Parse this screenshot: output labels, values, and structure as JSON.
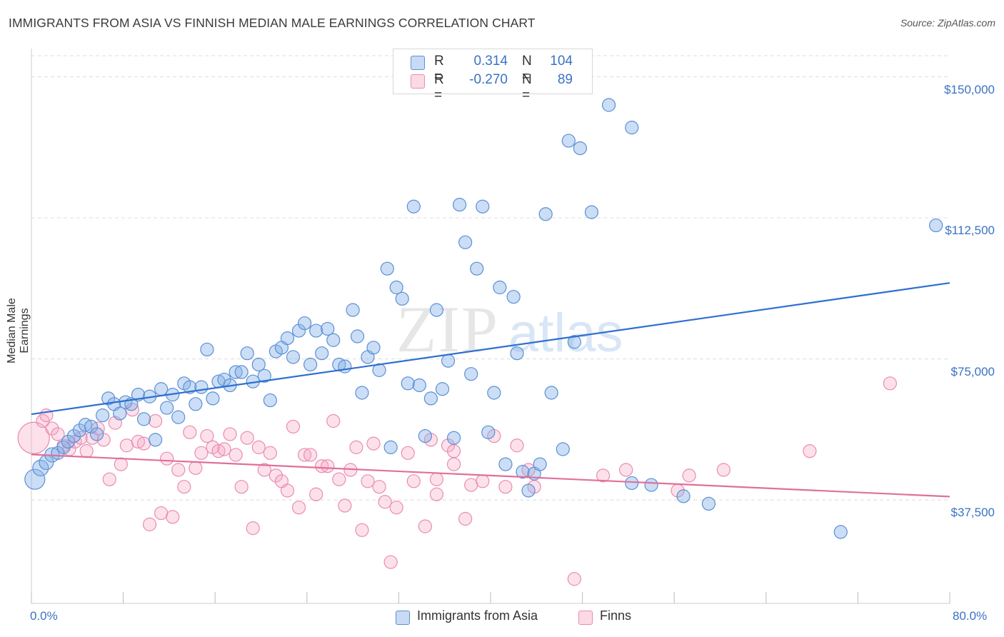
{
  "title": "IMMIGRANTS FROM ASIA VS FINNISH MEDIAN MALE EARNINGS CORRELATION CHART",
  "source": "Source: ZipAtlas.com",
  "watermark": {
    "zip": "ZIP",
    "atlas": "atlas"
  },
  "legend": {
    "r_label": "R =",
    "n_label": "N =",
    "rows": [
      {
        "r": "0.314",
        "n": "104",
        "color": "#6fa0e0"
      },
      {
        "r": "-0.270",
        "n": "89",
        "color": "#f08cb0"
      }
    ]
  },
  "bottom_legend": [
    {
      "label": "Immigrants from Asia",
      "color": "#6fa0e0"
    },
    {
      "label": "Finns",
      "color": "#f08cb0"
    }
  ],
  "colors": {
    "blue_line": "#2f6fcf",
    "pink_line": "#e0709a",
    "blue_fill": "rgba(132,176,232,0.42)",
    "blue_stroke": "#5b8fd6",
    "pink_fill": "rgba(246,170,198,0.35)",
    "pink_stroke": "#ea8cb0",
    "axis_label": "#3a72c4"
  },
  "chart_data": {
    "type": "scatter",
    "title": "IMMIGRANTS FROM ASIA VS FINNISH MEDIAN MALE EARNINGS CORRELATION CHART",
    "xlabel": "",
    "ylabel": "Median Male Earnings",
    "xlim": [
      0,
      80
    ],
    "ylim": [
      10000,
      157500
    ],
    "x_tick_labels": [
      "0.0%",
      "80.0%"
    ],
    "y_ticks": [
      37500,
      75000,
      112500,
      150000
    ],
    "y_tick_labels": [
      "$37,500",
      "$75,000",
      "$112,500",
      "$150,000"
    ],
    "grid": "horizontal dashed",
    "legend_position": "top-center",
    "series": [
      {
        "name": "Immigrants from Asia",
        "R": 0.314,
        "N": 104,
        "trend": {
          "x": [
            0,
            80
          ],
          "y": [
            60300,
            95200
          ]
        },
        "points": [
          [
            0.3,
            43000,
            14
          ],
          [
            0.8,
            46000,
            11
          ],
          [
            1.3,
            47500,
            10
          ],
          [
            1.8,
            49500,
            10
          ],
          [
            2.3,
            50000,
            9
          ],
          [
            2.8,
            51500,
            9
          ],
          [
            3.2,
            53000,
            9
          ],
          [
            3.7,
            54500,
            9
          ],
          [
            4.2,
            56000,
            9
          ],
          [
            4.7,
            57500,
            9
          ],
          [
            5.2,
            57000,
            9
          ],
          [
            5.7,
            55000,
            9
          ],
          [
            6.2,
            60000,
            9
          ],
          [
            6.7,
            64500,
            9
          ],
          [
            7.2,
            63000,
            9
          ],
          [
            7.7,
            60500,
            9
          ],
          [
            8.2,
            63500,
            9
          ],
          [
            8.7,
            63000,
            9
          ],
          [
            9.3,
            65500,
            9
          ],
          [
            9.8,
            59000,
            9
          ],
          [
            10.3,
            65000,
            9
          ],
          [
            10.8,
            53500,
            9
          ],
          [
            11.3,
            67000,
            9
          ],
          [
            11.8,
            62000,
            9
          ],
          [
            12.3,
            65500,
            9
          ],
          [
            12.8,
            59500,
            9
          ],
          [
            13.3,
            68500,
            9
          ],
          [
            13.8,
            67500,
            9
          ],
          [
            14.3,
            63000,
            9
          ],
          [
            14.8,
            67500,
            9
          ],
          [
            15.3,
            77500,
            9
          ],
          [
            15.8,
            64500,
            9
          ],
          [
            16.3,
            69000,
            9
          ],
          [
            16.8,
            69500,
            9
          ],
          [
            17.3,
            68000,
            9
          ],
          [
            17.8,
            71500,
            9
          ],
          [
            18.3,
            71500,
            9
          ],
          [
            18.8,
            76500,
            9
          ],
          [
            19.3,
            69000,
            9
          ],
          [
            19.8,
            73500,
            9
          ],
          [
            20.3,
            70500,
            9
          ],
          [
            20.8,
            64000,
            9
          ],
          [
            21.3,
            77000,
            9
          ],
          [
            21.8,
            78000,
            9
          ],
          [
            22.3,
            80500,
            9
          ],
          [
            22.8,
            75500,
            9
          ],
          [
            23.3,
            82500,
            9
          ],
          [
            23.8,
            84500,
            9
          ],
          [
            24.3,
            73500,
            9
          ],
          [
            24.8,
            82500,
            9
          ],
          [
            25.3,
            76500,
            9
          ],
          [
            25.8,
            83000,
            9
          ],
          [
            26.3,
            80000,
            9
          ],
          [
            26.8,
            73500,
            9
          ],
          [
            27.3,
            73000,
            9
          ],
          [
            28.0,
            88000,
            9
          ],
          [
            28.4,
            81000,
            9
          ],
          [
            28.8,
            66000,
            9
          ],
          [
            29.3,
            75500,
            9
          ],
          [
            29.8,
            78000,
            9
          ],
          [
            30.3,
            72000,
            9
          ],
          [
            31.0,
            99000,
            9
          ],
          [
            31.3,
            51500,
            9
          ],
          [
            31.8,
            94000,
            9
          ],
          [
            32.3,
            91000,
            9
          ],
          [
            32.8,
            68500,
            9
          ],
          [
            33.3,
            115500,
            9
          ],
          [
            33.8,
            68000,
            9
          ],
          [
            34.3,
            54500,
            9
          ],
          [
            34.8,
            64500,
            9
          ],
          [
            35.3,
            88000,
            9
          ],
          [
            35.8,
            67000,
            9
          ],
          [
            36.3,
            74500,
            9
          ],
          [
            36.8,
            54000,
            9
          ],
          [
            37.3,
            116000,
            9
          ],
          [
            37.8,
            106000,
            9
          ],
          [
            38.3,
            71000,
            9
          ],
          [
            38.8,
            99000,
            9
          ],
          [
            39.3,
            115500,
            9
          ],
          [
            39.8,
            55500,
            9
          ],
          [
            40.3,
            66000,
            9
          ],
          [
            40.8,
            94000,
            9
          ],
          [
            41.3,
            47000,
            9
          ],
          [
            42.0,
            91500,
            9
          ],
          [
            42.3,
            76500,
            9
          ],
          [
            42.8,
            45000,
            9
          ],
          [
            43.3,
            40000,
            9
          ],
          [
            43.8,
            44500,
            9
          ],
          [
            44.3,
            47000,
            9
          ],
          [
            44.8,
            113500,
            9
          ],
          [
            45.3,
            66000,
            9
          ],
          [
            46.3,
            51000,
            9
          ],
          [
            46.8,
            133000,
            9
          ],
          [
            47.3,
            79500,
            9
          ],
          [
            47.8,
            131000,
            9
          ],
          [
            48.8,
            114000,
            9
          ],
          [
            50.3,
            142500,
            9
          ],
          [
            52.3,
            136500,
            9
          ],
          [
            52.3,
            42000,
            9
          ],
          [
            54.0,
            41500,
            9
          ],
          [
            56.8,
            38500,
            9
          ],
          [
            59.0,
            36500,
            9
          ],
          [
            70.5,
            29000,
            9
          ],
          [
            78.8,
            110500,
            9
          ]
        ]
      },
      {
        "name": "Finns",
        "R": -0.27,
        "N": 89,
        "trend": {
          "x": [
            0,
            80
          ],
          "y": [
            49600,
            38400
          ]
        },
        "points": [
          [
            0.2,
            54000,
            22
          ],
          [
            1.0,
            58500,
            9
          ],
          [
            1.3,
            60000,
            9
          ],
          [
            1.8,
            56500,
            9
          ],
          [
            2.3,
            55000,
            9
          ],
          [
            2.8,
            52000,
            9
          ],
          [
            3.3,
            51000,
            9
          ],
          [
            3.8,
            53000,
            9
          ],
          [
            4.3,
            54000,
            9
          ],
          [
            4.8,
            50500,
            9
          ],
          [
            5.3,
            54000,
            9
          ],
          [
            5.8,
            56500,
            9
          ],
          [
            6.3,
            53500,
            9
          ],
          [
            6.8,
            43000,
            9
          ],
          [
            7.3,
            58000,
            9
          ],
          [
            7.8,
            47000,
            9
          ],
          [
            8.3,
            52000,
            9
          ],
          [
            8.8,
            61500,
            9
          ],
          [
            9.3,
            53000,
            9
          ],
          [
            9.8,
            52500,
            9
          ],
          [
            10.3,
            31000,
            9
          ],
          [
            10.8,
            58500,
            9
          ],
          [
            11.3,
            34000,
            9
          ],
          [
            11.8,
            48500,
            9
          ],
          [
            12.3,
            33000,
            9
          ],
          [
            12.8,
            45500,
            9
          ],
          [
            13.3,
            41000,
            9
          ],
          [
            13.8,
            55500,
            9
          ],
          [
            14.3,
            46000,
            9
          ],
          [
            14.8,
            50000,
            9
          ],
          [
            15.3,
            54500,
            9
          ],
          [
            15.8,
            51500,
            9
          ],
          [
            16.3,
            50500,
            9
          ],
          [
            16.8,
            51000,
            9
          ],
          [
            17.3,
            55000,
            9
          ],
          [
            17.8,
            49500,
            9
          ],
          [
            18.3,
            41000,
            9
          ],
          [
            18.8,
            54000,
            9
          ],
          [
            19.3,
            30000,
            9
          ],
          [
            19.8,
            51500,
            9
          ],
          [
            20.3,
            45500,
            9
          ],
          [
            20.8,
            50000,
            9
          ],
          [
            21.3,
            44000,
            9
          ],
          [
            21.8,
            42500,
            9
          ],
          [
            22.3,
            40000,
            9
          ],
          [
            22.8,
            57000,
            9
          ],
          [
            23.3,
            35500,
            9
          ],
          [
            23.8,
            49500,
            9
          ],
          [
            24.3,
            49500,
            9
          ],
          [
            24.8,
            39000,
            9
          ],
          [
            25.3,
            46500,
            9
          ],
          [
            25.8,
            46500,
            9
          ],
          [
            26.3,
            58500,
            9
          ],
          [
            26.8,
            43000,
            9
          ],
          [
            27.3,
            36000,
            9
          ],
          [
            27.8,
            45500,
            9
          ],
          [
            28.3,
            51500,
            9
          ],
          [
            28.8,
            29500,
            9
          ],
          [
            29.3,
            42500,
            9
          ],
          [
            29.8,
            52500,
            9
          ],
          [
            30.3,
            41000,
            9
          ],
          [
            30.8,
            37000,
            9
          ],
          [
            31.3,
            21000,
            9
          ],
          [
            31.8,
            35500,
            9
          ],
          [
            32.8,
            50000,
            9
          ],
          [
            33.3,
            42500,
            9
          ],
          [
            34.3,
            30500,
            9
          ],
          [
            34.8,
            53500,
            9
          ],
          [
            35.3,
            39000,
            9
          ],
          [
            35.3,
            43000,
            9
          ],
          [
            36.3,
            52000,
            9
          ],
          [
            36.8,
            47000,
            9
          ],
          [
            36.8,
            50500,
            9
          ],
          [
            37.8,
            32500,
            9
          ],
          [
            38.3,
            41500,
            9
          ],
          [
            39.3,
            42500,
            9
          ],
          [
            40.3,
            54500,
            9
          ],
          [
            41.3,
            41000,
            9
          ],
          [
            42.3,
            52000,
            9
          ],
          [
            43.3,
            45500,
            9
          ],
          [
            43.8,
            41000,
            9
          ],
          [
            47.3,
            16500,
            9
          ],
          [
            49.8,
            44000,
            9
          ],
          [
            51.8,
            45500,
            9
          ],
          [
            56.3,
            40000,
            9
          ],
          [
            57.3,
            44000,
            9
          ],
          [
            60.3,
            45500,
            9
          ],
          [
            67.8,
            50500,
            9
          ],
          [
            74.8,
            68500,
            9
          ]
        ]
      }
    ]
  }
}
